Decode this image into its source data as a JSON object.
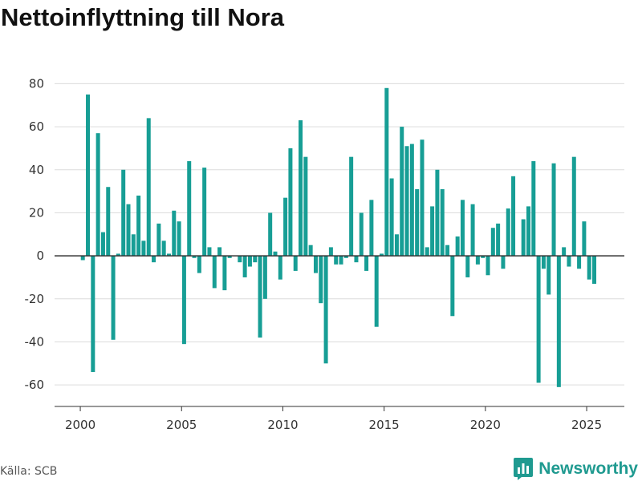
{
  "source": "Källa: SCB",
  "brand": {
    "name": "Newsworthy",
    "color": "#1f9a90"
  },
  "chart_data": {
    "type": "bar",
    "title": "Nettoinflyttning till Nora",
    "frequency": "quarterly",
    "values_by_year": [
      {
        "year": 2000,
        "quarters": [
          -2,
          75,
          -54,
          57
        ]
      },
      {
        "year": 2001,
        "quarters": [
          11,
          32,
          -39,
          1
        ]
      },
      {
        "year": 2002,
        "quarters": [
          40,
          24,
          10,
          28
        ]
      },
      {
        "year": 2003,
        "quarters": [
          7,
          64,
          -3,
          15
        ]
      },
      {
        "year": 2004,
        "quarters": [
          7,
          1,
          21,
          16
        ]
      },
      {
        "year": 2005,
        "quarters": [
          -41,
          44,
          -1,
          -8
        ]
      },
      {
        "year": 2006,
        "quarters": [
          41,
          4,
          -15,
          4
        ]
      },
      {
        "year": 2007,
        "quarters": [
          -16,
          -1,
          0,
          -3
        ]
      },
      {
        "year": 2008,
        "quarters": [
          -10,
          -5,
          -3,
          -38
        ]
      },
      {
        "year": 2009,
        "quarters": [
          -20,
          20,
          2,
          -11
        ]
      },
      {
        "year": 2010,
        "quarters": [
          27,
          50,
          -7,
          63
        ]
      },
      {
        "year": 2011,
        "quarters": [
          46,
          5,
          -8,
          -22
        ]
      },
      {
        "year": 2012,
        "quarters": [
          -50,
          4,
          -4,
          -4
        ]
      },
      {
        "year": 2013,
        "quarters": [
          -1,
          46,
          -3,
          20
        ]
      },
      {
        "year": 2014,
        "quarters": [
          -7,
          26,
          -33,
          1
        ]
      },
      {
        "year": 2015,
        "quarters": [
          78,
          36,
          10,
          60
        ]
      },
      {
        "year": 2016,
        "quarters": [
          51,
          52,
          31,
          54
        ]
      },
      {
        "year": 2017,
        "quarters": [
          4,
          23,
          40,
          31
        ]
      },
      {
        "year": 2018,
        "quarters": [
          5,
          -28,
          9,
          26
        ]
      },
      {
        "year": 2019,
        "quarters": [
          -10,
          24,
          -4,
          -1
        ]
      },
      {
        "year": 2020,
        "quarters": [
          -9,
          13,
          15,
          -6
        ]
      },
      {
        "year": 2021,
        "quarters": [
          22,
          37,
          0,
          17
        ]
      },
      {
        "year": 2022,
        "quarters": [
          23,
          44,
          -59,
          -6
        ]
      },
      {
        "year": 2023,
        "quarters": [
          -18,
          43,
          -61,
          4
        ]
      },
      {
        "year": 2024,
        "quarters": [
          -5,
          46,
          -6,
          16
        ]
      },
      {
        "year": 2025,
        "quarters": [
          -11,
          -13
        ]
      }
    ],
    "xlim": [
      1998.73,
      2026.86
    ],
    "ylim": [
      -70,
      85
    ],
    "xticks": [
      2000,
      2005,
      2010,
      2015,
      2020,
      2025
    ],
    "yticks": [
      80,
      60,
      40,
      20,
      0,
      -20,
      -40,
      -60
    ],
    "grid": true,
    "bar_color": "#179e95"
  }
}
